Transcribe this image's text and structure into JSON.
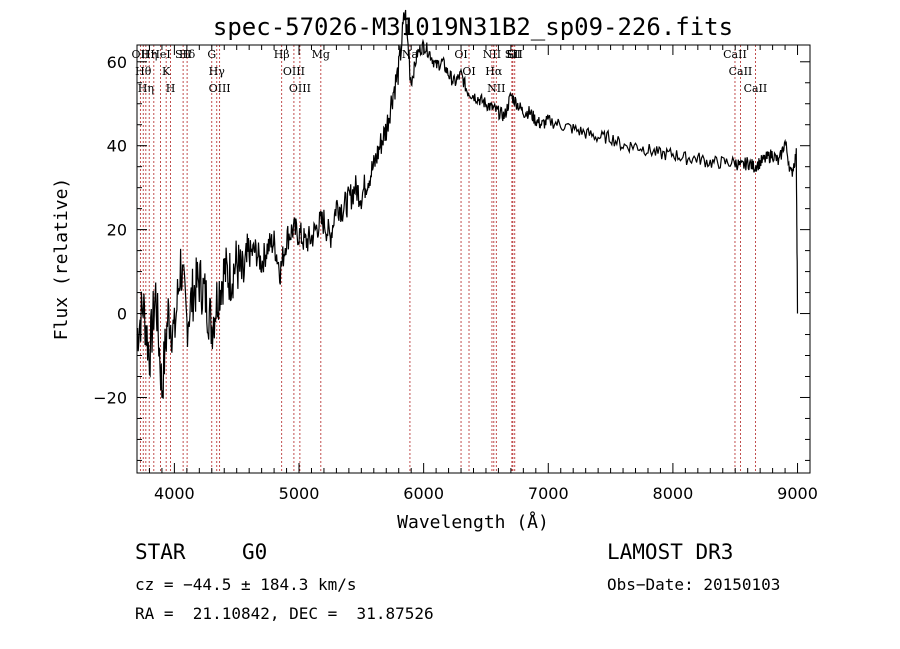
{
  "chart_data": {
    "type": "line",
    "title": "spec-57026-M31019N31B2_sp09-226.fits",
    "xlabel": "Wavelength (Å)",
    "ylabel": "Flux (relative)",
    "xlim": [
      3700,
      9100
    ],
    "ylim": [
      -38,
      64
    ],
    "xticks": [
      4000,
      5000,
      6000,
      7000,
      8000,
      9000
    ],
    "xtick_labels": [
      "4000",
      "5000",
      "6000",
      "7000",
      "8000",
      "9000"
    ],
    "yticks": [
      -20,
      0,
      20,
      40,
      60
    ],
    "ytick_labels": [
      "−20",
      "0",
      "20",
      "40",
      "60"
    ],
    "line_color": "#000000",
    "marker_color": "#b22222",
    "series": [
      {
        "name": "flux",
        "x": [
          3700,
          3750,
          3800,
          3850,
          3900,
          3950,
          4000,
          4050,
          4100,
          4150,
          4200,
          4250,
          4300,
          4350,
          4400,
          4450,
          4500,
          4550,
          4600,
          4650,
          4700,
          4750,
          4800,
          4850,
          4900,
          4950,
          5000,
          5050,
          5100,
          5150,
          5200,
          5250,
          5300,
          5350,
          5400,
          5450,
          5500,
          5550,
          5600,
          5650,
          5700,
          5750,
          5800,
          5850,
          5900,
          5950,
          6000,
          6050,
          6100,
          6150,
          6200,
          6250,
          6300,
          6350,
          6400,
          6450,
          6500,
          6550,
          6600,
          6650,
          6700,
          6750,
          6800,
          6850,
          6900,
          6950,
          7000,
          7100,
          7200,
          7300,
          7400,
          7500,
          7600,
          7700,
          7800,
          7900,
          8000,
          8100,
          8200,
          8300,
          8400,
          8500,
          8550,
          8600,
          8650,
          8700,
          8750,
          8800,
          8850,
          8900,
          8950,
          8990,
          9000
        ],
        "y": [
          -5,
          2,
          -10,
          5,
          -18,
          0,
          -5,
          12,
          -2,
          5,
          8,
          4,
          -3,
          5,
          10,
          9,
          12,
          8,
          14,
          15,
          12,
          16,
          17,
          10,
          18,
          20,
          19,
          17,
          18,
          21,
          22,
          18,
          26,
          25,
          27,
          30,
          28,
          32,
          35,
          40,
          44,
          52,
          58,
          72,
          55,
          62,
          64,
          62,
          59,
          60,
          57,
          55,
          57,
          53,
          52,
          51,
          50,
          49,
          48,
          47,
          52,
          50,
          48,
          48,
          46,
          45,
          46,
          45,
          44,
          43,
          42,
          42,
          40,
          40,
          39,
          38,
          38,
          37,
          37,
          36,
          36,
          36,
          35,
          36,
          35,
          36,
          37,
          38,
          36,
          41,
          33,
          38,
          0
        ]
      }
    ],
    "line_markers": [
      {
        "wavelength": 3727,
        "label": "OII"
      },
      {
        "wavelength": 3750,
        "label": "Hθ"
      },
      {
        "wavelength": 3771,
        "label": "Hη"
      },
      {
        "wavelength": 3798,
        "label": "Hη"
      },
      {
        "wavelength": 3835,
        "label": ""
      },
      {
        "wavelength": 3889,
        "label": "HeI"
      },
      {
        "wavelength": 3934,
        "label": "K"
      },
      {
        "wavelength": 3969,
        "label": "H"
      },
      {
        "wavelength": 4070,
        "label": "SII"
      },
      {
        "wavelength": 4102,
        "label": "Hδ"
      },
      {
        "wavelength": 4300,
        "label": "G"
      },
      {
        "wavelength": 4340,
        "label": "Hγ"
      },
      {
        "wavelength": 4363,
        "label": "OIII"
      },
      {
        "wavelength": 4861,
        "label": "Hβ"
      },
      {
        "wavelength": 4959,
        "label": "OIII"
      },
      {
        "wavelength": 5007,
        "label": "OIII"
      },
      {
        "wavelength": 5175,
        "label": "Mg"
      },
      {
        "wavelength": 5890,
        "label": "Na"
      },
      {
        "wavelength": 6300,
        "label": "OI"
      },
      {
        "wavelength": 6364,
        "label": "OI"
      },
      {
        "wavelength": 6548,
        "label": "NII"
      },
      {
        "wavelength": 6563,
        "label": "Hα"
      },
      {
        "wavelength": 6583,
        "label": "NII"
      },
      {
        "wavelength": 6708,
        "label": "Li"
      },
      {
        "wavelength": 6716,
        "label": "SII"
      },
      {
        "wavelength": 6731,
        "label": "SII"
      },
      {
        "wavelength": 8498,
        "label": "CaII"
      },
      {
        "wavelength": 8542,
        "label": "CaII"
      },
      {
        "wavelength": 8662,
        "label": "CaII"
      }
    ]
  },
  "info": {
    "class_label": "STAR",
    "subclass_label": "G0",
    "survey": "LAMOST DR3",
    "cz": "cz = −44.5 ± 184.3 km/s",
    "obs_date": "Obs−Date: 20150103",
    "coords": "RA =  21.10842, DEC =  31.87526"
  }
}
